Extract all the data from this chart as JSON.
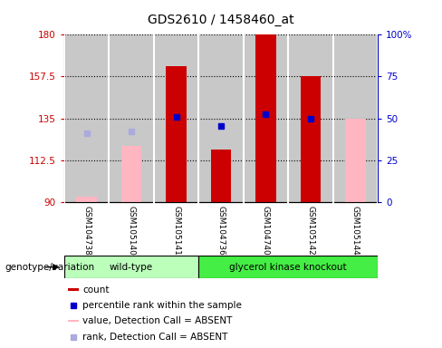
{
  "title": "GDS2610 / 1458460_at",
  "samples": [
    "GSM104738",
    "GSM105140",
    "GSM105141",
    "GSM104736",
    "GSM104740",
    "GSM105142",
    "GSM105144"
  ],
  "ylim_left": [
    90,
    180
  ],
  "ylim_right": [
    0,
    100
  ],
  "yticks_left": [
    90,
    112.5,
    135,
    157.5,
    180
  ],
  "yticks_right": [
    0,
    25,
    50,
    75,
    100
  ],
  "ytick_labels_left": [
    "90",
    "112.5",
    "135",
    "157.5",
    "180"
  ],
  "ytick_labels_right": [
    "0",
    "25",
    "50",
    "75",
    "100%"
  ],
  "bar_color_dark": "#CC0000",
  "bar_color_light": "#FFB6C1",
  "dot_color_dark": "#0000CC",
  "dot_color_light": "#AAAADD",
  "background_color": "#C8C8C8",
  "count_bars": {
    "GSM104738": null,
    "GSM105140": null,
    "GSM105141": 163,
    "GSM104736": 118,
    "GSM104740": 180,
    "GSM105142": 157.5,
    "GSM105144": null
  },
  "count_bars_absent": {
    "GSM104738": 93,
    "GSM105140": 120,
    "GSM105141": null,
    "GSM104736": null,
    "GSM104740": null,
    "GSM105142": null,
    "GSM105144": 135
  },
  "percentile_rank": {
    "GSM104738": null,
    "GSM105140": null,
    "GSM105141": 136,
    "GSM104736": 131,
    "GSM104740": 137,
    "GSM105142": 135,
    "GSM105144": null
  },
  "rank_absent": {
    "GSM104738": 127,
    "GSM105140": 128,
    "GSM105141": null,
    "GSM104736": null,
    "GSM104740": null,
    "GSM105142": null,
    "GSM105144": null
  },
  "wt_color": "#AAFFAA",
  "gk_color": "#44EE44",
  "wt_label": "wild-type",
  "gk_label": "glycerol kinase knockout",
  "legend_items": [
    {
      "label": "count",
      "color": "#CC0000",
      "type": "rect"
    },
    {
      "label": "percentile rank within the sample",
      "color": "#0000CC",
      "type": "square"
    },
    {
      "label": "value, Detection Call = ABSENT",
      "color": "#FFB6C1",
      "type": "rect"
    },
    {
      "label": "rank, Detection Call = ABSENT",
      "color": "#AAAADD",
      "type": "square"
    }
  ]
}
